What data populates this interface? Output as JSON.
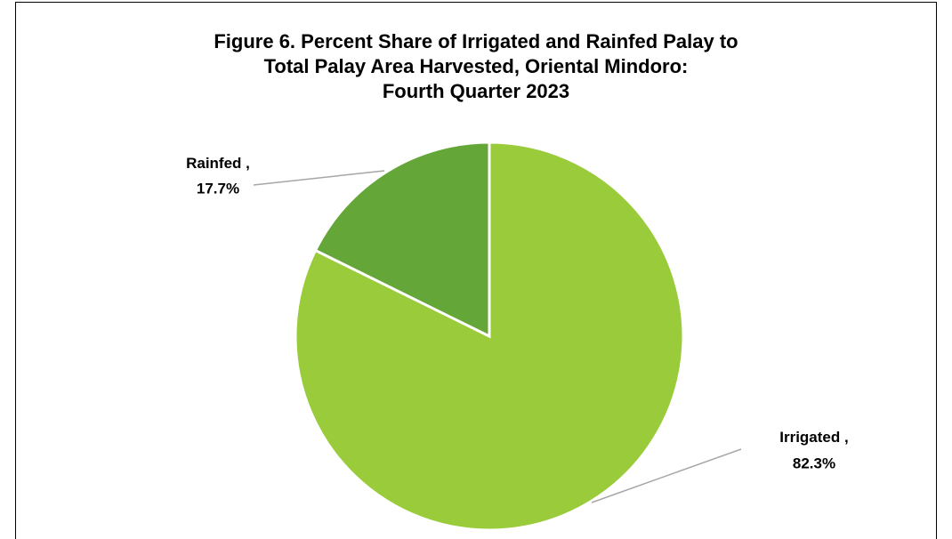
{
  "chart_data": {
    "type": "pie",
    "title": [
      "Figure 6. Percent Share of Irrigated and Rainfed Palay to",
      "Total Palay Area Harvested, Oriental Mindoro:",
      "Fourth Quarter 2023"
    ],
    "categories": [
      "Irrigated",
      "Rainfed"
    ],
    "values": [
      82.3,
      17.7
    ],
    "value_labels": [
      "82.3%",
      "17.7%"
    ],
    "label_separator": ",",
    "colors": [
      "#9acb3a",
      "#64a638"
    ]
  }
}
